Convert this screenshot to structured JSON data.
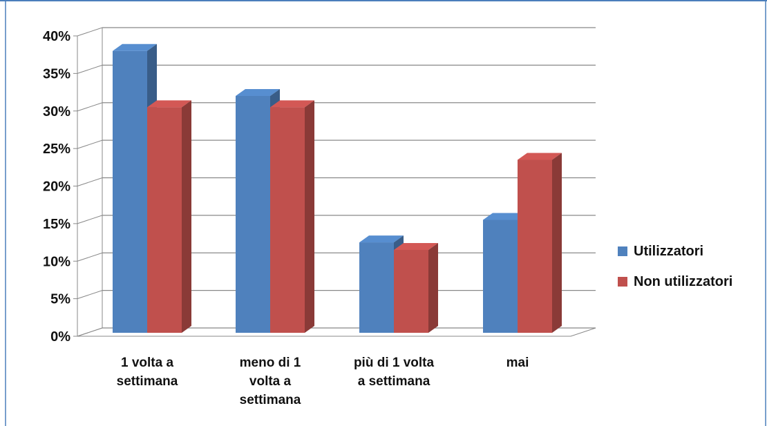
{
  "chart_data": {
    "type": "bar",
    "categories": [
      [
        "1 volta a",
        "settimana"
      ],
      [
        "meno di 1",
        "volta a",
        "settimana"
      ],
      [
        "più di 1 volta",
        "a settimana"
      ],
      [
        "mai"
      ]
    ],
    "series": [
      {
        "name": "Utilizzatori",
        "values": [
          38,
          32,
          12.5,
          15.5
        ],
        "color": "#4F81BD"
      },
      {
        "name": "Non utilizzatori",
        "values": [
          30.5,
          30.5,
          11.5,
          23.5
        ],
        "color": "#C0504D"
      }
    ],
    "y_ticks": [
      "0%",
      "5%",
      "10%",
      "15%",
      "20%",
      "25%",
      "30%",
      "35%",
      "40%"
    ],
    "ylim": [
      0,
      40
    ],
    "grid": true,
    "legend_position": "right",
    "style": "3d-clustered-column"
  }
}
